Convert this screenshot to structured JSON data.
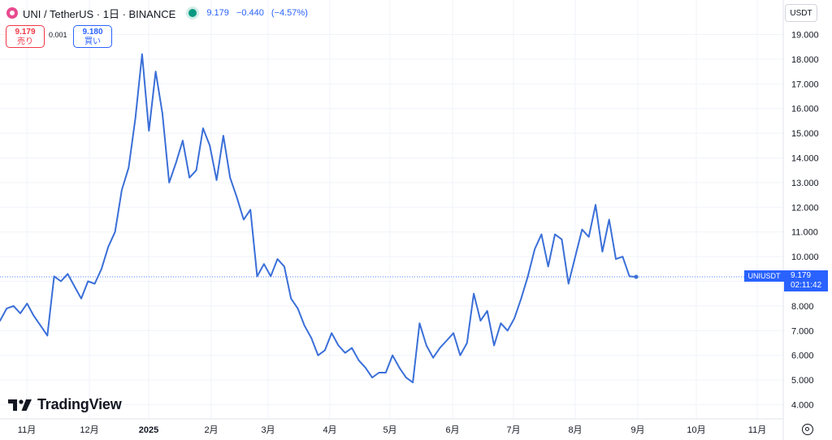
{
  "header": {
    "title": "UNI / TetherUS · 1日 · BINANCE",
    "last": "9.179",
    "change": "−0.440",
    "change_pct": "(−4.57%)"
  },
  "quote": {
    "sell_price": "9.179",
    "sell_label": "売り",
    "spread": "0.001",
    "buy_price": "9.180",
    "buy_label": "買い"
  },
  "currency_button": "USDT",
  "brand": "TradingView",
  "price_tag": {
    "symbol": "UNIUSDT",
    "price": "9.179",
    "countdown": "02:11:42"
  },
  "colors": {
    "line": "#3a6fd8",
    "accent": "#2962ff",
    "sell": "#f23645",
    "live_dot": "#089981"
  },
  "chart_data": {
    "type": "line",
    "series": [
      {
        "values": [
          7.4,
          7.9,
          8.0,
          7.7,
          8.1,
          7.6,
          7.2,
          6.8,
          9.2,
          9.0,
          9.3,
          8.8,
          8.3,
          9.0,
          8.9,
          9.5,
          10.4,
          11.0,
          12.7,
          13.6,
          15.6,
          18.2,
          15.1,
          17.5,
          15.8,
          13.0,
          13.8,
          14.7,
          13.2,
          13.5,
          15.2,
          14.5,
          13.1,
          14.9,
          13.2,
          12.4,
          11.5,
          11.9,
          9.2,
          9.7,
          9.2,
          9.9,
          9.6,
          8.3,
          7.9,
          7.2,
          6.7,
          6.0,
          6.2,
          6.9,
          6.4,
          6.1,
          6.3,
          5.8,
          5.5,
          5.1,
          5.3,
          5.3,
          6.0,
          5.5,
          5.1,
          4.9,
          7.3,
          6.4,
          5.9,
          6.3,
          6.6,
          6.9,
          6.0,
          6.5,
          8.5,
          7.4,
          7.8,
          6.4,
          7.3,
          7.0,
          7.5,
          8.3,
          9.2,
          10.3,
          10.9,
          9.6,
          10.9,
          10.7,
          8.9,
          10.0,
          11.1,
          10.8,
          12.1,
          10.2,
          11.5,
          9.9,
          10.0,
          9.2,
          9.179
        ]
      }
    ],
    "x_tick_labels": [
      "11月",
      "12月",
      "2025",
      "2月",
      "3月",
      "4月",
      "5月",
      "6月",
      "7月",
      "8月",
      "9月",
      "10月",
      "11月"
    ],
    "y_tick_labels": [
      "4.000",
      "5.000",
      "6.000",
      "7.000",
      "8.000",
      "9.000",
      "10.000",
      "11.000",
      "12.000",
      "13.000",
      "14.000",
      "15.000",
      "16.000",
      "17.000",
      "18.000",
      "19.000"
    ],
    "ylim": [
      3.5,
      19.5
    ],
    "last_value": 9.179,
    "grid": true
  }
}
